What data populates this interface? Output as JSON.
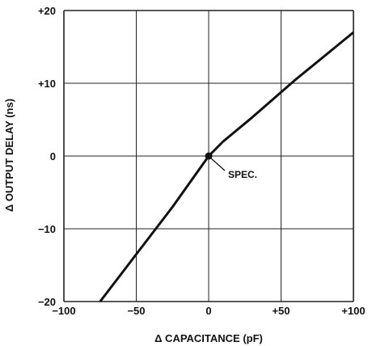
{
  "chart_data": {
    "type": "line",
    "title": "",
    "xlabel": "Δ CAPACITANCE (pF)",
    "ylabel": "Δ OUTPUT DELAY (ns)",
    "xlim": [
      -100,
      100
    ],
    "ylim": [
      -20,
      20
    ],
    "xticks": [
      -100,
      -50,
      0,
      50,
      100
    ],
    "yticks": [
      -20,
      -10,
      0,
      10,
      20
    ],
    "xtick_labels": [
      "−100",
      "−50",
      "0",
      "+50",
      "+100"
    ],
    "ytick_labels": [
      "−20",
      "−10",
      "0",
      "+10",
      "+20"
    ],
    "grid": true,
    "series": [
      {
        "x": [
          -75,
          -50,
          -25,
          0,
          10,
          30,
          60,
          100
        ],
        "y": [
          -20,
          -13.5,
          -7,
          0,
          2,
          5.3,
          10.5,
          17
        ]
      }
    ],
    "annotations": [
      {
        "text": "SPEC.",
        "x": 0,
        "y": 0
      }
    ],
    "colors": {
      "line": "#111111",
      "grid": "#222222",
      "background": "#ffffff"
    }
  }
}
